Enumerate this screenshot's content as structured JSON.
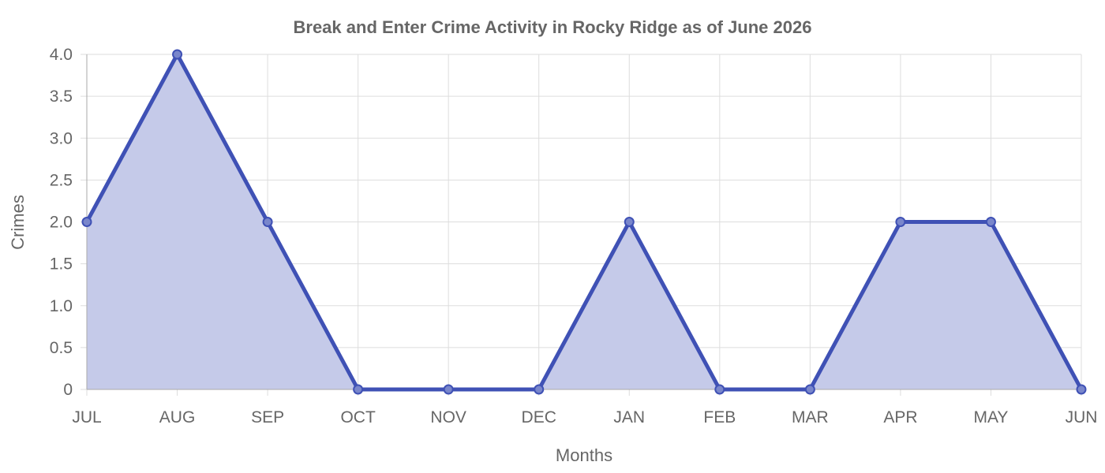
{
  "chart_data": {
    "type": "area",
    "title": "Break and Enter Crime Activity in Rocky Ridge as of June 2026",
    "xlabel": "Months",
    "ylabel": "Crimes",
    "categories": [
      "JUL",
      "AUG",
      "SEP",
      "OCT",
      "NOV",
      "DEC",
      "JAN",
      "FEB",
      "MAR",
      "APR",
      "MAY",
      "JUN"
    ],
    "series": [
      {
        "values": [
          2,
          4,
          2,
          0,
          0,
          0,
          2,
          0,
          0,
          2,
          2,
          0
        ]
      }
    ],
    "ylim": [
      0,
      4
    ],
    "yticks": [
      "0",
      "0.5",
      "1.0",
      "1.5",
      "2.0",
      "2.5",
      "3.0",
      "3.5",
      "4.0"
    ],
    "grid": true,
    "legend": "none",
    "colors": {
      "line": "#3f51b5",
      "fill": "#c5cae9",
      "grid": "#dddddd",
      "text": "#666666"
    }
  }
}
